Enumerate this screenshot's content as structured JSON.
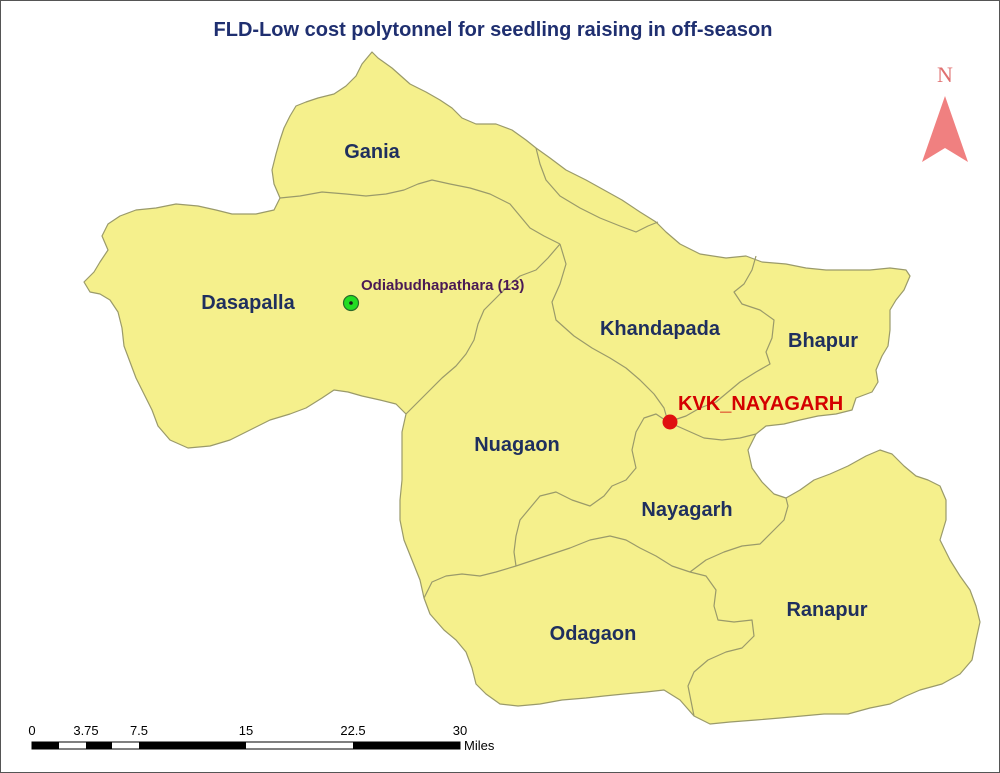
{
  "map": {
    "title": "FLD-Low cost polytonnel for seedling raising in off-season",
    "colors": {
      "land": "#f5f08c",
      "border": "#9a9a6a",
      "north_arrow": "#f08080",
      "kvk": "#e01010",
      "site": "#22dd22"
    },
    "blocks": [
      {
        "id": "gania",
        "label": "Gania"
      },
      {
        "id": "dasapalla",
        "label": "Dasapalla"
      },
      {
        "id": "khandapada",
        "label": "Khandapada"
      },
      {
        "id": "bhapur",
        "label": "Bhapur"
      },
      {
        "id": "nuagaon",
        "label": "Nuagaon"
      },
      {
        "id": "nayagarh",
        "label": "Nayagarh"
      },
      {
        "id": "odagaon",
        "label": "Odagaon"
      },
      {
        "id": "ranapur",
        "label": "Ranapur"
      }
    ],
    "points": {
      "site": {
        "label": "Odiabudhapathara (13)"
      },
      "kvk": {
        "label": "KVK_NAYAGARH"
      }
    },
    "north_arrow": {
      "label": "N"
    },
    "scale_bar": {
      "ticks": [
        "0",
        "3.75",
        "7.5",
        "15",
        "22.5",
        "30"
      ],
      "unit": "Miles"
    }
  }
}
